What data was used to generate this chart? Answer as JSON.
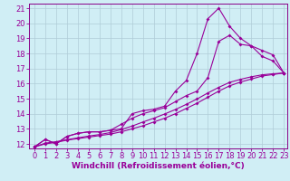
{
  "xlabel": "Windchill (Refroidissement éolien,°C)",
  "bg_color": "#d0eef5",
  "line_color": "#990099",
  "grid_color": "#b0ccd8",
  "spine_color": "#880088",
  "xmin": 0,
  "xmax": 23,
  "ymin": 12,
  "ymax": 21,
  "line1_x": [
    0,
    1,
    2,
    3,
    4,
    5,
    6,
    7,
    8,
    9,
    10,
    11,
    12,
    13,
    14,
    15,
    16,
    17,
    18,
    19,
    20,
    21,
    22,
    23
  ],
  "line1_y": [
    11.8,
    12.3,
    12.0,
    12.5,
    12.7,
    12.8,
    12.8,
    12.9,
    13.0,
    14.0,
    14.2,
    14.3,
    14.5,
    15.5,
    16.2,
    18.0,
    20.3,
    21.0,
    19.8,
    19.0,
    18.5,
    17.8,
    17.5,
    16.7
  ],
  "line2_x": [
    0,
    1,
    2,
    3,
    4,
    5,
    6,
    7,
    8,
    9,
    10,
    11,
    12,
    13,
    14,
    15,
    16,
    17,
    18,
    19,
    20,
    21,
    22,
    23
  ],
  "line2_y": [
    11.8,
    12.3,
    12.0,
    12.5,
    12.7,
    12.8,
    12.8,
    12.9,
    13.3,
    13.7,
    14.0,
    14.2,
    14.4,
    14.8,
    15.2,
    15.5,
    16.4,
    18.8,
    19.2,
    18.6,
    18.5,
    18.2,
    17.9,
    16.7
  ],
  "line3_x": [
    0,
    1,
    2,
    3,
    4,
    5,
    6,
    7,
    8,
    9,
    10,
    11,
    12,
    13,
    14,
    15,
    16,
    17,
    18,
    19,
    20,
    21,
    22,
    23
  ],
  "line3_y": [
    11.8,
    12.0,
    12.1,
    12.25,
    12.35,
    12.45,
    12.55,
    12.65,
    12.8,
    13.0,
    13.2,
    13.45,
    13.7,
    14.0,
    14.35,
    14.7,
    15.1,
    15.5,
    15.85,
    16.1,
    16.3,
    16.5,
    16.6,
    16.7
  ],
  "line4_x": [
    0,
    1,
    2,
    3,
    4,
    5,
    6,
    7,
    8,
    9,
    10,
    11,
    12,
    13,
    14,
    15,
    16,
    17,
    18,
    19,
    20,
    21,
    22,
    23
  ],
  "line4_y": [
    11.8,
    12.05,
    12.15,
    12.28,
    12.4,
    12.52,
    12.62,
    12.75,
    12.95,
    13.18,
    13.45,
    13.7,
    13.98,
    14.28,
    14.62,
    14.98,
    15.38,
    15.75,
    16.08,
    16.28,
    16.45,
    16.58,
    16.65,
    16.7
  ],
  "tick_fontsize": 6,
  "xlabel_fontsize": 6.5,
  "marker_size": 2.0,
  "linewidth": 0.8
}
